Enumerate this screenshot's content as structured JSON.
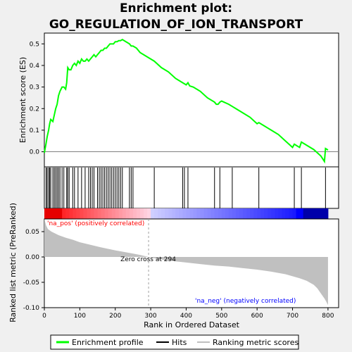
{
  "chart_data": {
    "type": "line",
    "title_lines": [
      "Enrichment plot:",
      "GO_REGULATION_OF_ION_TRANSPORT"
    ],
    "xlabel": "Rank in Ordered Dataset",
    "es_panel": {
      "ylabel": "Enrichment score (ES)",
      "ylim": [
        -0.07,
        0.55
      ],
      "yticks": [
        "0.0",
        "0.1",
        "0.2",
        "0.3",
        "0.4",
        "0.5"
      ],
      "ytick_values": [
        0.0,
        0.1,
        0.2,
        0.3,
        0.4,
        0.5
      ],
      "series": [
        {
          "name": "Enrichment profile",
          "color": "#00ff00",
          "x": [
            0,
            5,
            8,
            12,
            15,
            18,
            24,
            28,
            32,
            36,
            40,
            44,
            50,
            55,
            60,
            63,
            66,
            70,
            75,
            80,
            85,
            90,
            95,
            100,
            105,
            110,
            115,
            120,
            125,
            130,
            135,
            140,
            145,
            150,
            155,
            160,
            165,
            170,
            175,
            180,
            185,
            190,
            195,
            200,
            205,
            210,
            215,
            220,
            230,
            240,
            245,
            250,
            260,
            270,
            290,
            310,
            330,
            350,
            370,
            390,
            395,
            400,
            405,
            410,
            420,
            440,
            460,
            480,
            485,
            490,
            495,
            500,
            520,
            530,
            540,
            560,
            580,
            600,
            605,
            620,
            640,
            660,
            680,
            700,
            705,
            710,
            720,
            725,
            740,
            760,
            780,
            790,
            793,
            800
          ],
          "y": [
            -0.005,
            0.04,
            0.07,
            0.1,
            0.13,
            0.15,
            0.14,
            0.17,
            0.2,
            0.22,
            0.26,
            0.28,
            0.3,
            0.3,
            0.29,
            0.32,
            0.39,
            0.38,
            0.38,
            0.4,
            0.41,
            0.4,
            0.42,
            0.41,
            0.43,
            0.42,
            0.42,
            0.43,
            0.42,
            0.43,
            0.44,
            0.45,
            0.44,
            0.45,
            0.46,
            0.47,
            0.47,
            0.48,
            0.48,
            0.49,
            0.5,
            0.5,
            0.5,
            0.51,
            0.51,
            0.515,
            0.515,
            0.52,
            0.51,
            0.5,
            0.49,
            0.49,
            0.48,
            0.46,
            0.44,
            0.42,
            0.39,
            0.37,
            0.34,
            0.32,
            0.315,
            0.31,
            0.32,
            0.305,
            0.3,
            0.28,
            0.25,
            0.23,
            0.22,
            0.22,
            0.23,
            0.235,
            0.22,
            0.21,
            0.2,
            0.18,
            0.16,
            0.13,
            0.135,
            0.12,
            0.1,
            0.08,
            0.05,
            0.02,
            0.035,
            0.03,
            0.02,
            0.045,
            0.03,
            0.01,
            -0.02,
            -0.045,
            0.015,
            0.008
          ]
        }
      ],
      "zero_line": true
    },
    "hits": [
      5,
      8,
      12,
      15,
      18,
      24,
      28,
      32,
      36,
      40,
      44,
      50,
      55,
      63,
      66,
      70,
      80,
      85,
      95,
      105,
      115,
      125,
      130,
      135,
      140,
      150,
      155,
      160,
      165,
      170,
      175,
      180,
      185,
      190,
      195,
      200,
      205,
      210,
      215,
      220,
      240,
      245,
      250,
      310,
      390,
      395,
      405,
      480,
      495,
      530,
      605,
      705,
      725,
      793
    ],
    "ranked_panel": {
      "ylabel": "Ranked list metric (PreRanked)",
      "ylim": [
        -0.1,
        0.075
      ],
      "yticks": [
        "0.05",
        "0.00",
        "-0.05",
        "-0.10"
      ],
      "ytick_values": [
        0.05,
        0.0,
        -0.05,
        -0.1
      ],
      "fill_color": "#c0c0c0",
      "profile_x": [
        0,
        2,
        5,
        10,
        20,
        40,
        60,
        80,
        100,
        130,
        160,
        200,
        240,
        270,
        294,
        320,
        360,
        400,
        440,
        480,
        520,
        560,
        600,
        640,
        680,
        700,
        720,
        740,
        760,
        770,
        780,
        790,
        795,
        800
      ],
      "profile_y": [
        0.075,
        0.07,
        0.062,
        0.055,
        0.05,
        0.043,
        0.038,
        0.034,
        0.029,
        0.024,
        0.019,
        0.013,
        0.008,
        0.004,
        0.0,
        -0.004,
        -0.008,
        -0.011,
        -0.014,
        -0.017,
        -0.019,
        -0.022,
        -0.025,
        -0.029,
        -0.034,
        -0.038,
        -0.042,
        -0.047,
        -0.055,
        -0.062,
        -0.072,
        -0.082,
        -0.088,
        -0.095
      ],
      "zero_cross": 294,
      "zero_cross_label": "Zero cross at 294",
      "pos_label": "'na_pos' (positively correlated)",
      "neg_label": "'na_neg' (negatively correlated)",
      "pos_color": "#ff0000",
      "neg_color": "#0000ff"
    },
    "xlim": [
      0,
      830
    ],
    "xticks": [
      "0",
      "100",
      "200",
      "300",
      "400",
      "500",
      "600",
      "700",
      "800"
    ],
    "xtick_values": [
      0,
      100,
      200,
      300,
      400,
      500,
      600,
      700,
      800
    ],
    "legend": [
      {
        "label": "Enrichment profile",
        "color": "#00ff00",
        "style": "line"
      },
      {
        "label": "Hits",
        "color": "#000000",
        "style": "line"
      },
      {
        "label": "Ranking metric scores",
        "color": "#c0c0c0",
        "style": "line"
      }
    ]
  }
}
